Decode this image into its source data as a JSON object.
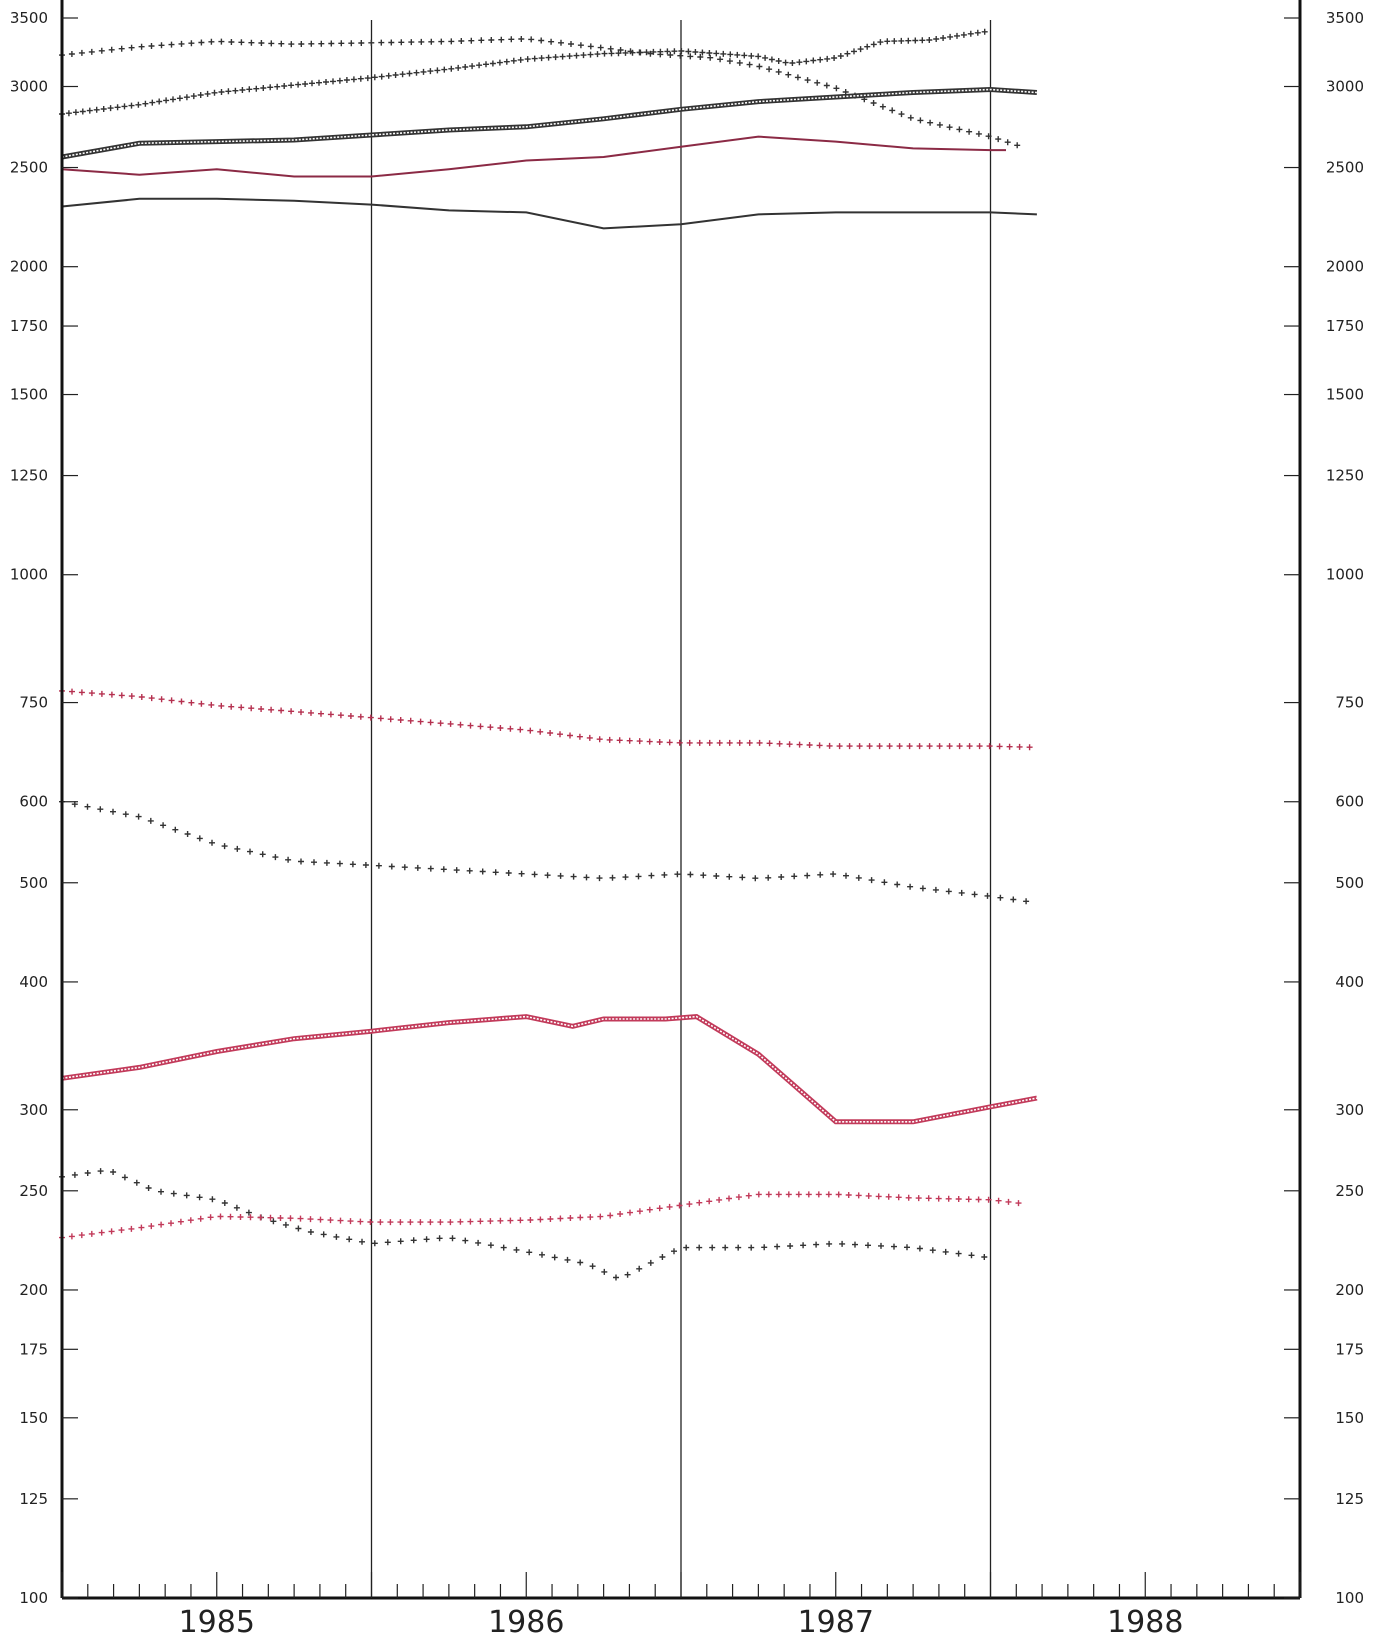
{
  "chart_data": {
    "type": "line",
    "title": "",
    "xlabel": "",
    "ylabel": "",
    "y_scale": "log",
    "ylim": [
      100,
      3600
    ],
    "xlim": [
      1984.5,
      1988.5
    ],
    "y_ticks": [
      100,
      125,
      150,
      175,
      200,
      250,
      300,
      400,
      500,
      600,
      750,
      1000,
      1250,
      1500,
      1750,
      2000,
      2500,
      3000,
      3500
    ],
    "y_tick_labels": [
      "100",
      "125",
      "150",
      "175",
      "200",
      "250",
      "300",
      "400",
      "500",
      "600",
      "750",
      "1000",
      "1250",
      "1500",
      "1750",
      "2000",
      "2500",
      "3000",
      "3500"
    ],
    "x_year_labels": [
      "1985",
      "1986",
      "1987",
      "1988"
    ],
    "x_year_positions": [
      1985,
      1986,
      1987,
      1988
    ],
    "vertical_lines": [
      1985.5,
      1986.5,
      1987.5
    ],
    "grid": false,
    "legend": "none",
    "series": [
      {
        "style": "cross",
        "color": "#333333",
        "x": [
          1984.5,
          1984.75,
          1985.0,
          1985.25,
          1985.5,
          1985.75,
          1986.0,
          1986.15,
          1986.4,
          1986.6,
          1986.75,
          1987.0,
          1987.25,
          1987.5,
          1987.6
        ],
        "y": [
          3220,
          3280,
          3320,
          3300,
          3310,
          3320,
          3340,
          3300,
          3230,
          3200,
          3140,
          2990,
          2790,
          2680,
          2620
        ]
      },
      {
        "style": "cross-dense",
        "color": "#333333",
        "x": [
          1984.5,
          1984.75,
          1985.0,
          1985.25,
          1985.5,
          1985.75,
          1986.0,
          1986.25,
          1986.5,
          1986.75,
          1986.85,
          1987.0,
          1987.15,
          1987.3,
          1987.5
        ],
        "y": [
          2820,
          2880,
          2960,
          3010,
          3060,
          3120,
          3190,
          3230,
          3250,
          3210,
          3160,
          3200,
          3320,
          3330,
          3400
        ]
      },
      {
        "style": "double",
        "color": "#333333",
        "x": [
          1984.5,
          1984.75,
          1985.0,
          1985.25,
          1985.5,
          1985.75,
          1986.0,
          1986.25,
          1986.5,
          1986.75,
          1987.0,
          1987.25,
          1987.5,
          1987.65
        ],
        "y": [
          2560,
          2640,
          2650,
          2660,
          2690,
          2720,
          2740,
          2790,
          2850,
          2900,
          2930,
          2960,
          2980,
          2960
        ]
      },
      {
        "style": "solid",
        "color": "#8b2a45",
        "x": [
          1984.5,
          1984.75,
          1985.0,
          1985.25,
          1985.5,
          1985.75,
          1986.0,
          1986.25,
          1986.5,
          1986.75,
          1987.0,
          1987.25,
          1987.5,
          1987.55
        ],
        "y": [
          2490,
          2460,
          2490,
          2450,
          2450,
          2490,
          2540,
          2560,
          2620,
          2680,
          2650,
          2610,
          2600,
          2600
        ]
      },
      {
        "style": "solid",
        "color": "#333333",
        "x": [
          1984.5,
          1984.75,
          1985.0,
          1985.25,
          1985.5,
          1985.75,
          1986.0,
          1986.25,
          1986.5,
          1986.75,
          1987.0,
          1987.25,
          1987.5,
          1987.65
        ],
        "y": [
          2290,
          2330,
          2330,
          2320,
          2300,
          2270,
          2260,
          2180,
          2200,
          2250,
          2260,
          2260,
          2260,
          2250
        ]
      },
      {
        "style": "cross",
        "color": "#b5304f",
        "x": [
          1984.5,
          1984.75,
          1985.0,
          1985.25,
          1985.5,
          1985.75,
          1986.0,
          1986.25,
          1986.5,
          1986.75,
          1987.0,
          1987.25,
          1987.5,
          1987.65
        ],
        "y": [
          770,
          760,
          745,
          735,
          725,
          715,
          705,
          690,
          685,
          685,
          680,
          680,
          680,
          678
        ]
      },
      {
        "style": "cross-sparse",
        "color": "#333333",
        "x": [
          1984.5,
          1984.75,
          1985.0,
          1985.25,
          1985.5,
          1985.75,
          1986.0,
          1986.25,
          1986.5,
          1986.75,
          1987.0,
          1987.25,
          1987.5,
          1987.65
        ],
        "y": [
          600,
          580,
          545,
          525,
          520,
          515,
          510,
          505,
          510,
          505,
          510,
          495,
          485,
          478
        ]
      },
      {
        "style": "double",
        "color": "#c23a5a",
        "x": [
          1984.5,
          1984.75,
          1985.0,
          1985.25,
          1985.5,
          1985.75,
          1986.0,
          1986.15,
          1986.25,
          1986.45,
          1986.55,
          1986.75,
          1987.0,
          1987.25,
          1987.5,
          1987.65
        ],
        "y": [
          322,
          330,
          342,
          352,
          358,
          365,
          370,
          362,
          368,
          368,
          370,
          340,
          292,
          292,
          302,
          308
        ]
      },
      {
        "style": "cross-sparse",
        "color": "#333333",
        "x": [
          1984.5,
          1984.65,
          1984.8,
          1985.0,
          1985.15,
          1985.3,
          1985.5,
          1985.75,
          1986.0,
          1986.2,
          1986.3,
          1986.5,
          1986.75,
          1987.0,
          1987.25,
          1987.5
        ],
        "y": [
          258,
          262,
          250,
          245,
          235,
          228,
          222,
          225,
          218,
          212,
          205,
          220,
          220,
          222,
          220,
          215
        ]
      },
      {
        "style": "cross",
        "color": "#c23a5a",
        "x": [
          1984.5,
          1984.75,
          1985.0,
          1985.25,
          1985.5,
          1985.75,
          1986.0,
          1986.25,
          1986.5,
          1986.75,
          1987.0,
          1987.25,
          1987.5,
          1987.6
        ],
        "y": [
          225,
          230,
          236,
          235,
          233,
          233,
          234,
          236,
          242,
          248,
          248,
          246,
          245,
          243
        ]
      }
    ]
  }
}
